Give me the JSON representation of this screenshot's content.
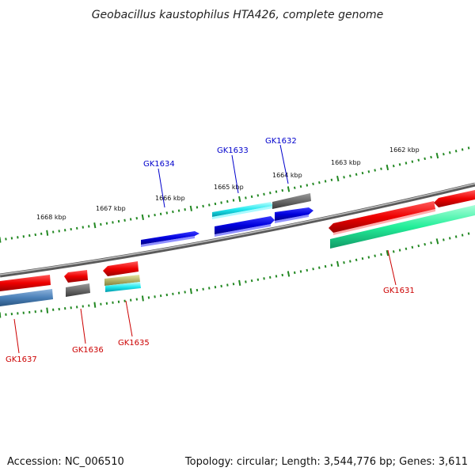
{
  "title": "Geobacillus kaustophilus HTA426, complete genome",
  "footer": {
    "accession": "Accession: NC_006510",
    "summary": "Topology: circular; Length: 3,544,776 bp; Genes: 3,611"
  },
  "colors": {
    "tick_green": "#228822",
    "backbone_gray": "#808080",
    "label_blue": "#0000cc",
    "label_red": "#cc0000"
  },
  "kbp_labels": [
    "1668 kbp",
    "1667 kbp",
    "1666 kbp",
    "1665 kbp",
    "1664 kbp",
    "1663 kbp",
    "1662 kbp"
  ],
  "gene_labels": {
    "GK1634": "GK1634",
    "GK1633": "GK1633",
    "GK1632": "GK1632",
    "GK1631": "GK1631",
    "GK1637": "GK1637",
    "GK1636": "GK1636",
    "GK1635": "GK1635"
  }
}
